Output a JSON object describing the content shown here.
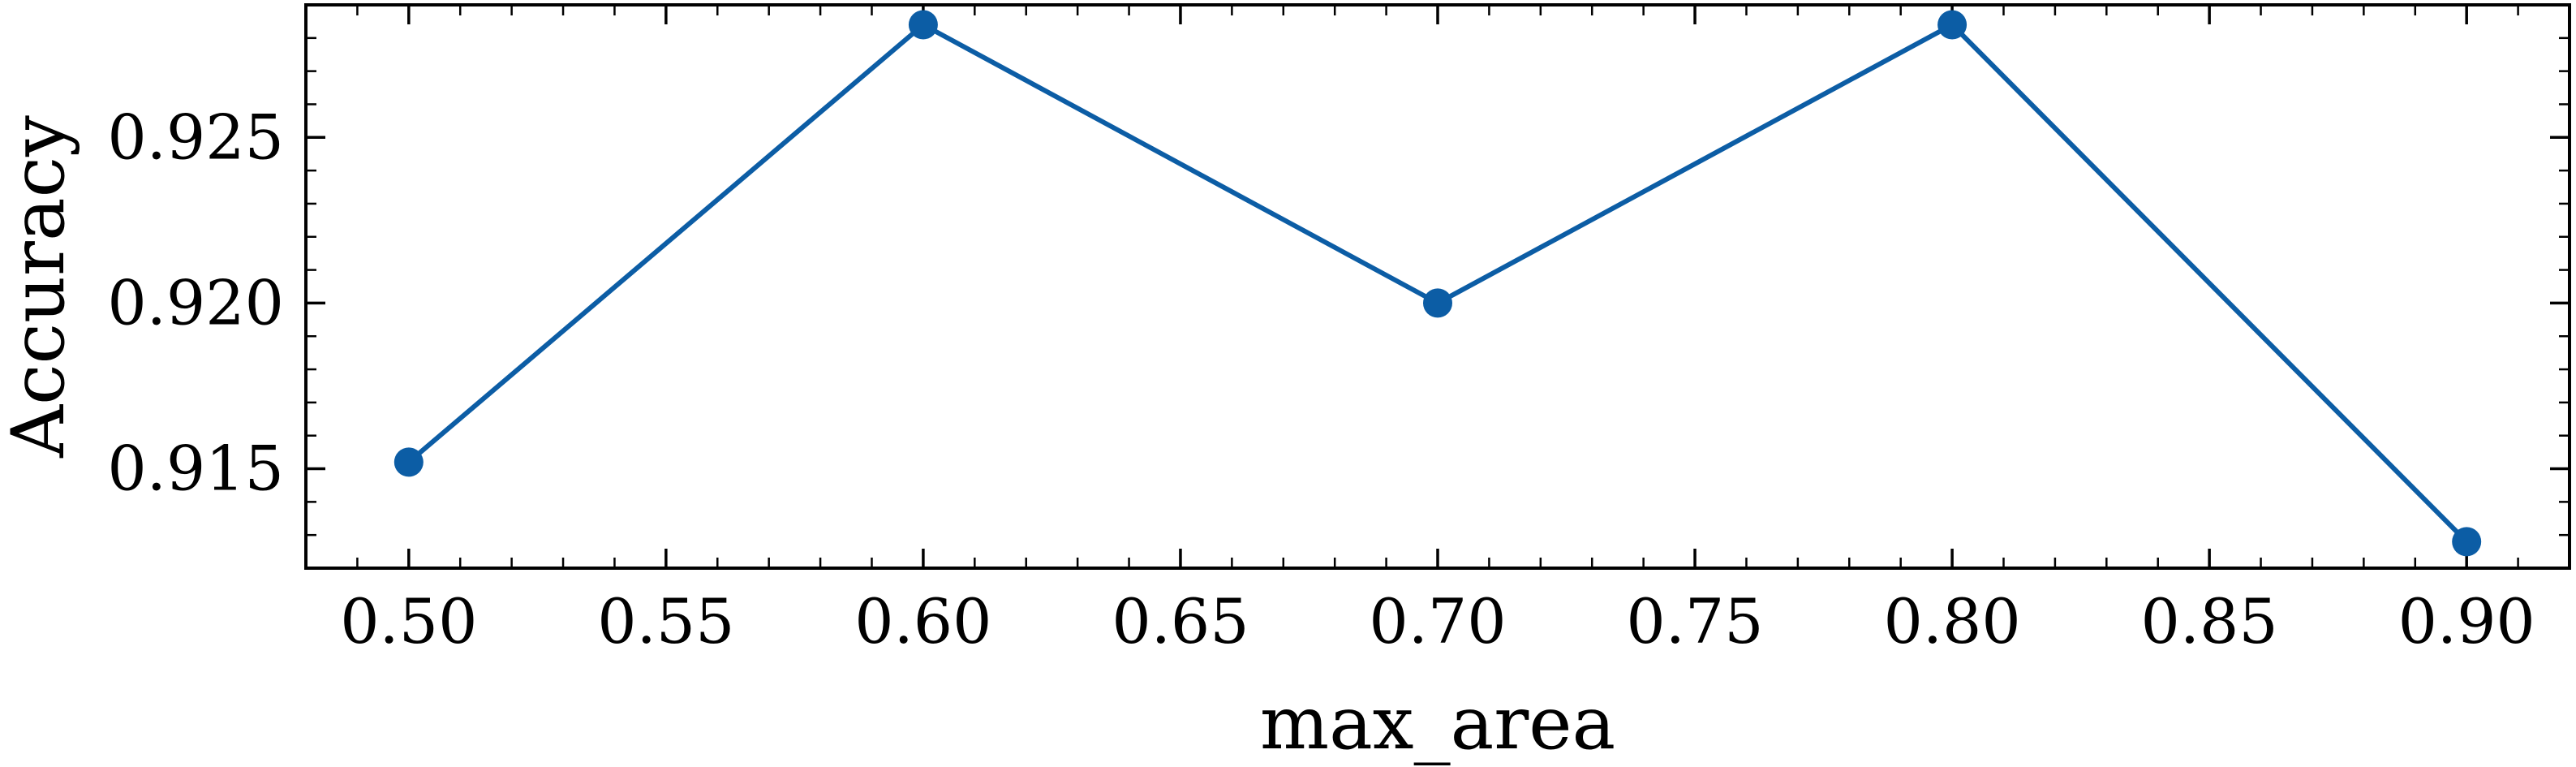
{
  "chart_data": {
    "type": "line",
    "title": "",
    "xlabel": "max_area",
    "ylabel": "Accuracy",
    "x": [
      0.5,
      0.6,
      0.7,
      0.8,
      0.9
    ],
    "series": [
      {
        "values": [
          0.9152,
          0.9284,
          0.92,
          0.9284,
          0.9128
        ],
        "color": "#0C5DA5",
        "marker": "circle"
      }
    ],
    "xlim": [
      0.48,
      0.92
    ],
    "ylim": [
      0.912,
      0.929
    ],
    "x_ticks": [
      0.5,
      0.55,
      0.6,
      0.65,
      0.7,
      0.75,
      0.8,
      0.85,
      0.9
    ],
    "x_tick_labels": [
      "0.50",
      "0.55",
      "0.60",
      "0.65",
      "0.70",
      "0.75",
      "0.80",
      "0.85",
      "0.90"
    ],
    "y_ticks": [
      0.915,
      0.92,
      0.925
    ],
    "y_tick_labels": [
      "0.915",
      "0.920",
      "0.925"
    ],
    "grid": false,
    "legend": "none"
  }
}
